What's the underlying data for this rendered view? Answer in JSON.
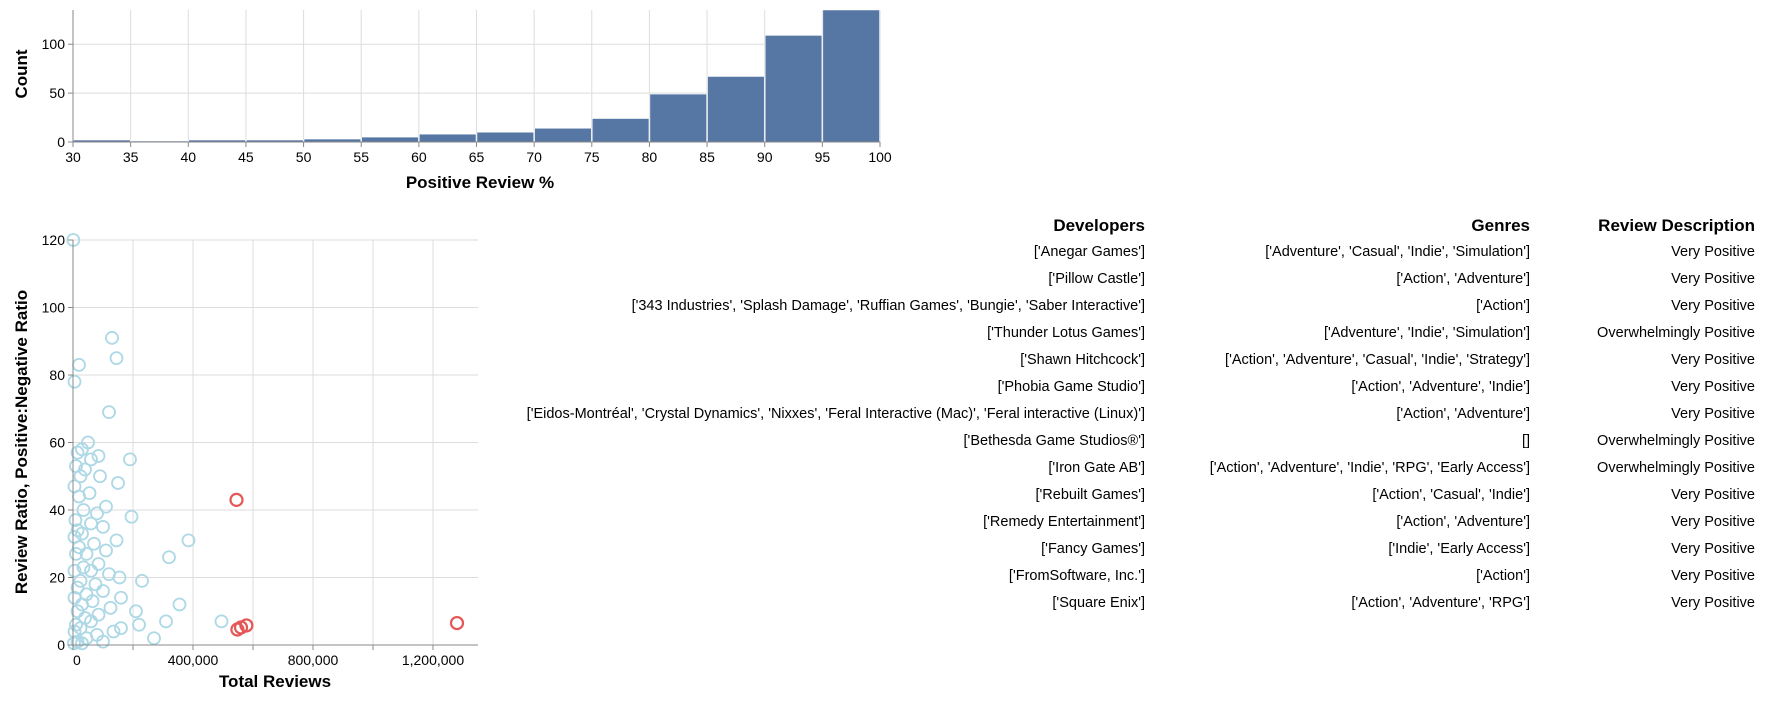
{
  "chart_data": [
    {
      "type": "bar",
      "xlabel": "Positive Review %",
      "ylabel": "Count",
      "x_ticks": [
        "30",
        "35",
        "40",
        "45",
        "50",
        "55",
        "60",
        "65",
        "70",
        "75",
        "80",
        "85",
        "90",
        "95",
        "100"
      ],
      "y_ticks": [
        "0",
        "50",
        "100"
      ],
      "xlim": [
        30,
        100
      ],
      "ylim": [
        0,
        135
      ],
      "grid": true,
      "color": "#5677a4",
      "bins": [
        {
          "start": 30,
          "end": 35,
          "count": 2
        },
        {
          "start": 35,
          "end": 40,
          "count": 1
        },
        {
          "start": 40,
          "end": 45,
          "count": 2
        },
        {
          "start": 45,
          "end": 50,
          "count": 2
        },
        {
          "start": 50,
          "end": 55,
          "count": 3
        },
        {
          "start": 55,
          "end": 60,
          "count": 5
        },
        {
          "start": 60,
          "end": 65,
          "count": 8
        },
        {
          "start": 65,
          "end": 70,
          "count": 10
        },
        {
          "start": 70,
          "end": 75,
          "count": 14
        },
        {
          "start": 75,
          "end": 80,
          "count": 24
        },
        {
          "start": 80,
          "end": 85,
          "count": 49
        },
        {
          "start": 85,
          "end": 90,
          "count": 67
        },
        {
          "start": 90,
          "end": 95,
          "count": 109
        },
        {
          "start": 95,
          "end": 100,
          "count": 135
        }
      ]
    },
    {
      "type": "scatter",
      "xlabel": "Total Reviews",
      "ylabel": "Review Ratio, Positive:Negative Ratio",
      "x_ticks": [
        "0",
        "400,000",
        "800,000",
        "1,200,000"
      ],
      "x_tick_values": [
        0,
        400000,
        800000,
        1200000
      ],
      "y_ticks": [
        "0",
        "20",
        "40",
        "60",
        "80",
        "100",
        "120"
      ],
      "y_tick_values": [
        0,
        20,
        40,
        60,
        80,
        100,
        120
      ],
      "xlim": [
        0,
        1350000
      ],
      "ylim": [
        0,
        120
      ],
      "grid": true,
      "colors": {
        "default": "#add8e6",
        "highlighted": "#e45756"
      },
      "points": [
        {
          "x": 1000,
          "y": 120,
          "h": false
        },
        {
          "x": 130000,
          "y": 91,
          "h": false
        },
        {
          "x": 20000,
          "y": 83,
          "h": false
        },
        {
          "x": 145000,
          "y": 85,
          "h": false
        },
        {
          "x": 5000,
          "y": 78,
          "h": false
        },
        {
          "x": 120000,
          "y": 69,
          "h": false
        },
        {
          "x": 50000,
          "y": 60,
          "h": false
        },
        {
          "x": 30000,
          "y": 58,
          "h": false
        },
        {
          "x": 15000,
          "y": 57,
          "h": false
        },
        {
          "x": 85000,
          "y": 56,
          "h": false
        },
        {
          "x": 190000,
          "y": 55,
          "h": false
        },
        {
          "x": 60000,
          "y": 55,
          "h": false
        },
        {
          "x": 10000,
          "y": 53,
          "h": false
        },
        {
          "x": 40000,
          "y": 52,
          "h": false
        },
        {
          "x": 90000,
          "y": 50,
          "h": false
        },
        {
          "x": 25000,
          "y": 50,
          "h": false
        },
        {
          "x": 150000,
          "y": 48,
          "h": false
        },
        {
          "x": 5000,
          "y": 47,
          "h": false
        },
        {
          "x": 55000,
          "y": 45,
          "h": false
        },
        {
          "x": 20000,
          "y": 44,
          "h": false
        },
        {
          "x": 110000,
          "y": 41,
          "h": false
        },
        {
          "x": 35000,
          "y": 40,
          "h": false
        },
        {
          "x": 80000,
          "y": 39,
          "h": false
        },
        {
          "x": 195000,
          "y": 38,
          "h": false
        },
        {
          "x": 8000,
          "y": 37,
          "h": false
        },
        {
          "x": 60000,
          "y": 36,
          "h": false
        },
        {
          "x": 100000,
          "y": 35,
          "h": false
        },
        {
          "x": 15000,
          "y": 34,
          "h": false
        },
        {
          "x": 30000,
          "y": 33,
          "h": false
        },
        {
          "x": 5000,
          "y": 32,
          "h": false
        },
        {
          "x": 385000,
          "y": 31,
          "h": false
        },
        {
          "x": 145000,
          "y": 31,
          "h": false
        },
        {
          "x": 70000,
          "y": 30,
          "h": false
        },
        {
          "x": 20000,
          "y": 29,
          "h": false
        },
        {
          "x": 110000,
          "y": 28,
          "h": false
        },
        {
          "x": 45000,
          "y": 27,
          "h": false
        },
        {
          "x": 10000,
          "y": 27,
          "h": false
        },
        {
          "x": 320000,
          "y": 26,
          "h": false
        },
        {
          "x": 85000,
          "y": 24,
          "h": false
        },
        {
          "x": 35000,
          "y": 23,
          "h": false
        },
        {
          "x": 5000,
          "y": 22,
          "h": false
        },
        {
          "x": 60000,
          "y": 22,
          "h": false
        },
        {
          "x": 120000,
          "y": 21,
          "h": false
        },
        {
          "x": 155000,
          "y": 20,
          "h": false
        },
        {
          "x": 230000,
          "y": 19,
          "h": false
        },
        {
          "x": 25000,
          "y": 19,
          "h": false
        },
        {
          "x": 75000,
          "y": 18,
          "h": false
        },
        {
          "x": 15000,
          "y": 17,
          "h": false
        },
        {
          "x": 100000,
          "y": 16,
          "h": false
        },
        {
          "x": 45000,
          "y": 15,
          "h": false
        },
        {
          "x": 160000,
          "y": 14,
          "h": false
        },
        {
          "x": 5000,
          "y": 14,
          "h": false
        },
        {
          "x": 65000,
          "y": 13,
          "h": false
        },
        {
          "x": 30000,
          "y": 12,
          "h": false
        },
        {
          "x": 355000,
          "y": 12,
          "h": false
        },
        {
          "x": 125000,
          "y": 11,
          "h": false
        },
        {
          "x": 210000,
          "y": 10,
          "h": false
        },
        {
          "x": 15000,
          "y": 10,
          "h": false
        },
        {
          "x": 85000,
          "y": 9,
          "h": false
        },
        {
          "x": 40000,
          "y": 8,
          "h": false
        },
        {
          "x": 495000,
          "y": 7,
          "h": false
        },
        {
          "x": 310000,
          "y": 7,
          "h": false
        },
        {
          "x": 60000,
          "y": 7,
          "h": false
        },
        {
          "x": 10000,
          "y": 6,
          "h": false
        },
        {
          "x": 220000,
          "y": 6,
          "h": false
        },
        {
          "x": 160000,
          "y": 5,
          "h": false
        },
        {
          "x": 25000,
          "y": 5,
          "h": false
        },
        {
          "x": 135000,
          "y": 4,
          "h": false
        },
        {
          "x": 5000,
          "y": 4,
          "h": false
        },
        {
          "x": 80000,
          "y": 3,
          "h": false
        },
        {
          "x": 270000,
          "y": 2,
          "h": false
        },
        {
          "x": 45000,
          "y": 2,
          "h": false
        },
        {
          "x": 15000,
          "y": 1,
          "h": false
        },
        {
          "x": 100000,
          "y": 1,
          "h": false
        },
        {
          "x": 3000,
          "y": 0.5,
          "h": false
        },
        {
          "x": 30000,
          "y": 0.5,
          "h": false
        },
        {
          "x": 545000,
          "y": 43,
          "h": true
        },
        {
          "x": 1280000,
          "y": 6.5,
          "h": true
        },
        {
          "x": 578000,
          "y": 5.8,
          "h": true
        },
        {
          "x": 560000,
          "y": 5.2,
          "h": true
        },
        {
          "x": 548000,
          "y": 4.6,
          "h": true
        }
      ]
    }
  ],
  "table": {
    "headers": {
      "developers": "Developers",
      "genres": "Genres",
      "review": "Review Description"
    },
    "rows": [
      {
        "developers": "['Anegar Games']",
        "genres": "['Adventure', 'Casual', 'Indie', 'Simulation']",
        "review": "Very Positive"
      },
      {
        "developers": "['Pillow Castle']",
        "genres": "['Action', 'Adventure']",
        "review": "Very Positive"
      },
      {
        "developers": "['343 Industries', 'Splash Damage', 'Ruffian Games', 'Bungie', 'Saber Interactive']",
        "genres": "['Action']",
        "review": "Very Positive"
      },
      {
        "developers": "['Thunder Lotus Games']",
        "genres": "['Adventure', 'Indie', 'Simulation']",
        "review": "Overwhelmingly Positive"
      },
      {
        "developers": "['Shawn Hitchcock']",
        "genres": "['Action', 'Adventure', 'Casual', 'Indie', 'Strategy']",
        "review": "Very Positive"
      },
      {
        "developers": "['Phobia Game Studio']",
        "genres": "['Action', 'Adventure', 'Indie']",
        "review": "Very Positive"
      },
      {
        "developers": "['Eidos-Montréal', 'Crystal Dynamics', 'Nixxes', 'Feral Interactive (Mac)', 'Feral interactive (Linux)']",
        "genres": "['Action', 'Adventure']",
        "review": "Very Positive"
      },
      {
        "developers": "['Bethesda Game Studios®']",
        "genres": "[]",
        "review": "Overwhelmingly Positive"
      },
      {
        "developers": "['Iron Gate AB']",
        "genres": "['Action', 'Adventure', 'Indie', 'RPG', 'Early Access']",
        "review": "Overwhelmingly Positive"
      },
      {
        "developers": "['Rebuilt Games']",
        "genres": "['Action', 'Casual', 'Indie']",
        "review": "Very Positive"
      },
      {
        "developers": "['Remedy Entertainment']",
        "genres": "['Action', 'Adventure']",
        "review": "Very Positive"
      },
      {
        "developers": "['Fancy Games']",
        "genres": "['Indie', 'Early Access']",
        "review": "Very Positive"
      },
      {
        "developers": "['FromSoftware, Inc.']",
        "genres": "['Action']",
        "review": "Very Positive"
      },
      {
        "developers": "['Square Enix']",
        "genres": "['Action', 'Adventure', 'RPG']",
        "review": "Very Positive"
      }
    ]
  }
}
